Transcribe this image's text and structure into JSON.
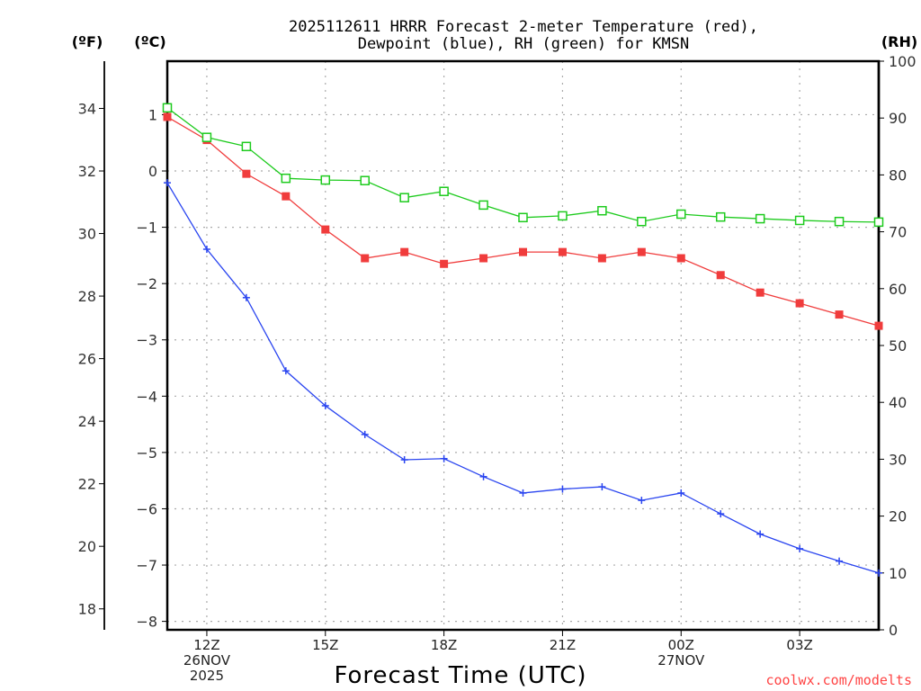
{
  "chart_data": {
    "type": "line",
    "title_lines": [
      "2025112611 HRRR Forecast 2-meter Temperature (red),",
      "Dewpoint (blue), RH (green) for KMSN"
    ],
    "xlabel": "Forecast Time (UTC)",
    "x": [
      "11Z",
      "12Z",
      "13Z",
      "14Z",
      "15Z",
      "16Z",
      "17Z",
      "18Z",
      "19Z",
      "20Z",
      "21Z",
      "22Z",
      "23Z",
      "00Z",
      "01Z",
      "02Z",
      "03Z",
      "04Z",
      "05Z"
    ],
    "x_ticks": [
      {
        "index": 1,
        "lines": [
          "12Z",
          "26NOV",
          "2025"
        ]
      },
      {
        "index": 4,
        "lines": [
          "15Z"
        ]
      },
      {
        "index": 7,
        "lines": [
          "18Z"
        ]
      },
      {
        "index": 10,
        "lines": [
          "21Z"
        ]
      },
      {
        "index": 13,
        "lines": [
          "00Z",
          "27NOV"
        ]
      },
      {
        "index": 16,
        "lines": [
          "03Z"
        ]
      }
    ],
    "axes": {
      "celsius": {
        "label": "(ºC)",
        "range": [
          -8.15,
          1.95
        ],
        "ticks": [
          1,
          0,
          -1,
          -2,
          -3,
          -4,
          -5,
          -6,
          -7,
          -8
        ]
      },
      "fahrenheit": {
        "label": "(ºF)",
        "ticks": [
          34,
          32,
          30,
          28,
          26,
          24,
          22,
          20,
          18
        ]
      },
      "rh": {
        "label": "(RH)",
        "range": [
          0,
          100
        ],
        "ticks": [
          100,
          90,
          80,
          70,
          60,
          50,
          40,
          30,
          20,
          10,
          0
        ]
      }
    },
    "grid": true,
    "series": [
      {
        "name": "2-meter Temperature",
        "axis": "celsius",
        "color": "#f03c3c",
        "marker": "filled-square",
        "values": [
          0.96,
          0.55,
          -0.05,
          -0.45,
          -1.04,
          -1.55,
          -1.44,
          -1.65,
          -1.55,
          -1.44,
          -1.44,
          -1.55,
          -1.44,
          -1.55,
          -1.85,
          -2.16,
          -2.35,
          -2.55,
          -2.75
        ]
      },
      {
        "name": "Dewpoint",
        "axis": "celsius",
        "color": "#2a45f0",
        "marker": "plus",
        "values": [
          -0.21,
          -1.39,
          -2.25,
          -3.55,
          -4.17,
          -4.68,
          -5.13,
          -5.11,
          -5.43,
          -5.72,
          -5.65,
          -5.61,
          -5.85,
          -5.72,
          -6.09,
          -6.45,
          -6.71,
          -6.93,
          -7.14
        ]
      },
      {
        "name": "RH",
        "axis": "rh",
        "color": "#1ecb1e",
        "marker": "open-square",
        "values": [
          91.8,
          86.6,
          85.0,
          79.4,
          79.1,
          79.0,
          76.0,
          77.1,
          74.7,
          72.5,
          72.8,
          73.7,
          71.8,
          73.1,
          72.6,
          72.3,
          72.0,
          71.8,
          71.7
        ]
      }
    ],
    "credit": "coolwx.com/modelts"
  }
}
